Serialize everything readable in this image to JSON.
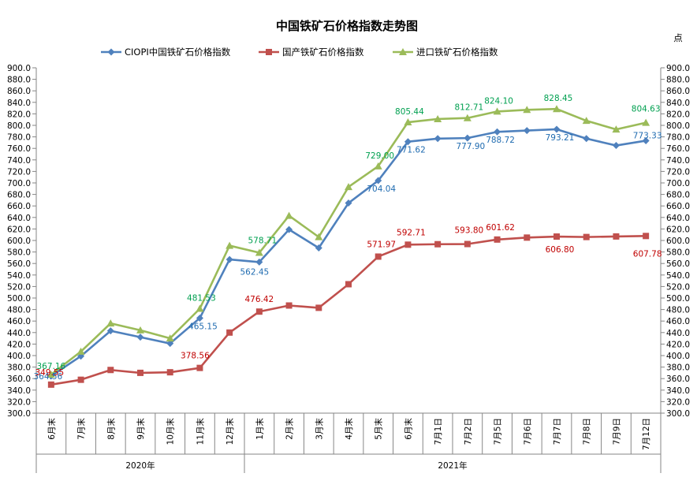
{
  "chart_data": {
    "type": "line",
    "title": "中国铁矿石价格指数走势图",
    "unit_label": "点",
    "categories": [
      "6月末",
      "7月末",
      "8月末",
      "9月末",
      "10月末",
      "11月末",
      "12月末",
      "1月末",
      "2月末",
      "3月末",
      "4月末",
      "5月末",
      "6月末",
      "7月1日",
      "7月2日",
      "7月5日",
      "7月6日",
      "7月7日",
      "7月8日",
      "7月9日",
      "7月12日"
    ],
    "year_groups": [
      {
        "label": "2020年",
        "start": 0,
        "end": 6
      },
      {
        "label": "2021年",
        "start": 7,
        "end": 20
      }
    ],
    "ylim": [
      300,
      900
    ],
    "ytick_step": 20,
    "ytick_labels": [
      "300.0",
      "320.0",
      "340.0",
      "360.0",
      "380.0",
      "400.0",
      "420.0",
      "440.0",
      "460.0",
      "480.0",
      "500.0",
      "520.0",
      "540.0",
      "560.0",
      "580.0",
      "600.0",
      "620.0",
      "640.0",
      "660.0",
      "680.0",
      "700.0",
      "720.0",
      "740.0",
      "760.0",
      "780.0",
      "800.0",
      "820.0",
      "840.0",
      "860.0",
      "880.0",
      "900.0"
    ],
    "legend_position": "top",
    "grid": false,
    "series": [
      {
        "name": "CIOPI中国铁矿石价格指数",
        "color": "#4F81BD",
        "label_color": "#1F6BB0",
        "marker": "diamond",
        "values": [
          364.56,
          399,
          443,
          432,
          421,
          465.15,
          567,
          562.45,
          619,
          587,
          665,
          704.04,
          771.62,
          777,
          777.9,
          788.72,
          791,
          793.21,
          777,
          765,
          773.33
        ],
        "labels": [
          {
            "i": 0,
            "text": "364.56"
          },
          {
            "i": 5,
            "text": "465.15"
          },
          {
            "i": 7,
            "text": "562.45"
          },
          {
            "i": 11,
            "text": "704.04"
          },
          {
            "i": 12,
            "text": "771.62"
          },
          {
            "i": 14,
            "text": "777.90"
          },
          {
            "i": 15,
            "text": "788.72"
          },
          {
            "i": 17,
            "text": "793.21"
          },
          {
            "i": 20,
            "text": "773.33"
          }
        ]
      },
      {
        "name": "国产铁矿石价格指数",
        "color": "#C0504D",
        "label_color": "#C00000",
        "marker": "square",
        "values": [
          349.55,
          358,
          375,
          370,
          371,
          378.56,
          440,
          476.42,
          487,
          483,
          524,
          571.97,
          592.71,
          593.5,
          593.8,
          601.62,
          605,
          606.8,
          606,
          607,
          607.78
        ],
        "labels": [
          {
            "i": 0,
            "text": "349.55"
          },
          {
            "i": 5,
            "text": "378.56"
          },
          {
            "i": 7,
            "text": "476.42"
          },
          {
            "i": 11,
            "text": "571.97"
          },
          {
            "i": 12,
            "text": "592.71"
          },
          {
            "i": 14,
            "text": "593.80"
          },
          {
            "i": 15,
            "text": "601.62"
          },
          {
            "i": 17,
            "text": "606.80"
          },
          {
            "i": 20,
            "text": "607.78"
          }
        ]
      },
      {
        "name": "进口铁矿石价格指数",
        "color": "#9BBB59",
        "label_color": "#00A050",
        "marker": "triangle",
        "values": [
          367.16,
          407,
          456,
          444,
          430,
          481.53,
          591,
          578.71,
          643,
          606,
          693,
          729.0,
          805.44,
          811,
          812.71,
          824.1,
          827,
          828.45,
          808,
          793,
          804.63
        ],
        "labels": [
          {
            "i": 0,
            "text": "367.16"
          },
          {
            "i": 5,
            "text": "481.53"
          },
          {
            "i": 7,
            "text": "578.71"
          },
          {
            "i": 11,
            "text": "729.00"
          },
          {
            "i": 12,
            "text": "805.44"
          },
          {
            "i": 14,
            "text": "812.71"
          },
          {
            "i": 15,
            "text": "824.10"
          },
          {
            "i": 17,
            "text": "828.45"
          },
          {
            "i": 20,
            "text": "804.63"
          }
        ]
      }
    ]
  }
}
